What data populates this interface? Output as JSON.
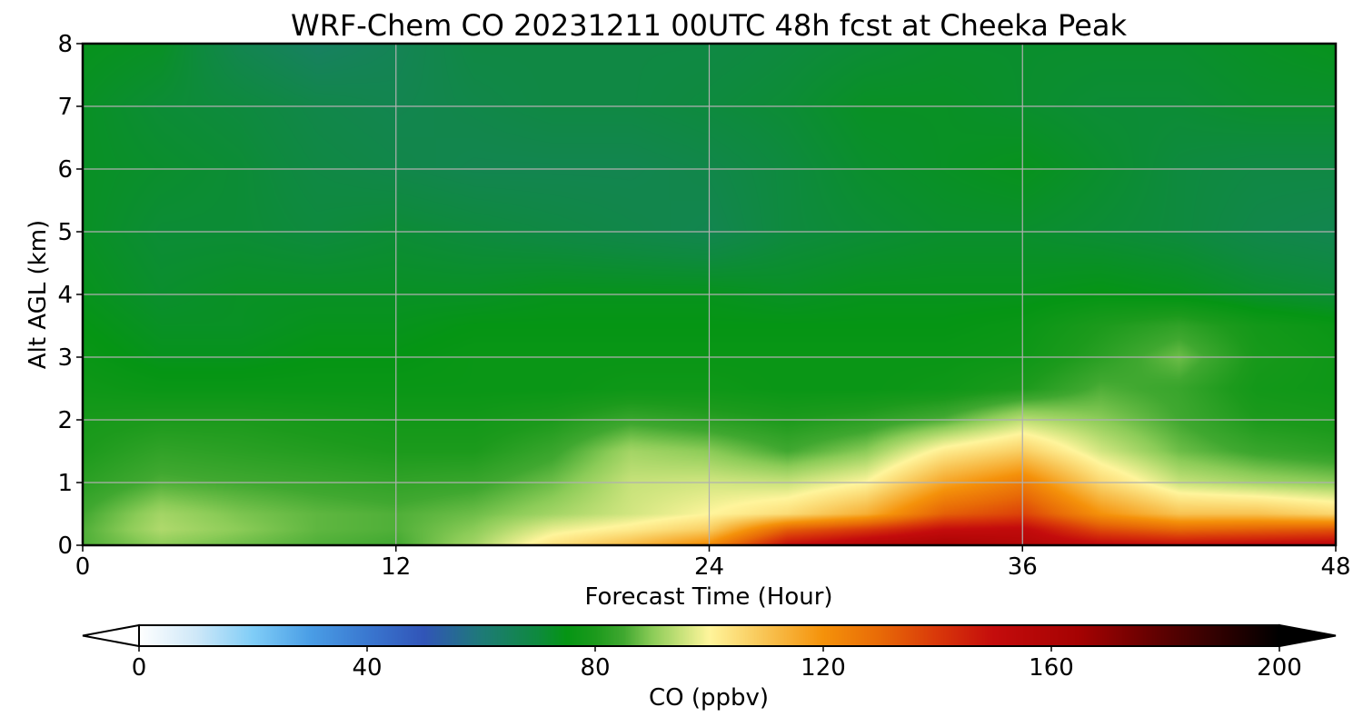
{
  "chart_data": {
    "type": "heatmap",
    "title": "WRF-Chem CO  20231211 00UTC 48h fcst at Cheeka Peak",
    "xlabel": "Forecast Time (Hour)",
    "ylabel": "Alt AGL (km)",
    "xlim": [
      0,
      48
    ],
    "ylim": [
      0,
      8
    ],
    "xticks": [
      0,
      12,
      24,
      36,
      48
    ],
    "yticks": [
      0,
      1,
      2,
      3,
      4,
      5,
      6,
      7,
      8
    ],
    "grid": true,
    "colorbar": {
      "label": "CO  (ppbv)",
      "orientation": "horizontal",
      "position": "bottom",
      "ticks": [
        0,
        40,
        80,
        120,
        160,
        200
      ],
      "range": [
        0,
        200
      ],
      "extend": "both",
      "colors": {
        "0": "#ffffff",
        "10": "#cfe8f8",
        "20": "#80cdf7",
        "30": "#4a9ee6",
        "40": "#3a78d0",
        "50": "#3155b8",
        "60": "#1e7a78",
        "70": "#0e8a3e",
        "75": "#059514",
        "80": "#1c9a1c",
        "85": "#40a830",
        "90": "#8ccc58",
        "95": "#c7e27a",
        "100": "#fff59c",
        "110": "#f8c352",
        "120": "#f5920a",
        "130": "#e86a07",
        "140": "#d9380a",
        "150": "#c40c0c",
        "165": "#a50202",
        "180": "#5a0101",
        "200": "#000000"
      }
    },
    "x": [
      0,
      3,
      6,
      9,
      12,
      15,
      18,
      21,
      24,
      27,
      30,
      33,
      36,
      39,
      42,
      45,
      48
    ],
    "y": [
      0,
      0.25,
      0.5,
      1,
      1.5,
      2,
      2.5,
      3,
      3.5,
      4,
      5,
      6,
      7,
      8
    ],
    "z": [
      [
        86,
        90,
        88,
        86,
        85,
        92,
        104,
        112,
        122,
        150,
        158,
        163,
        158,
        152,
        150,
        152,
        154
      ],
      [
        86,
        93,
        90,
        87,
        86,
        90,
        98,
        102,
        108,
        132,
        140,
        150,
        152,
        136,
        130,
        132,
        134
      ],
      [
        85,
        92,
        89,
        87,
        86,
        88,
        92,
        96,
        100,
        105,
        114,
        132,
        138,
        120,
        110,
        110,
        106
      ],
      [
        82,
        86,
        85,
        84,
        83,
        84,
        88,
        95,
        96,
        95,
        100,
        116,
        125,
        106,
        95,
        92,
        90
      ],
      [
        80,
        83,
        82,
        81,
        80,
        80,
        84,
        92,
        90,
        85,
        90,
        102,
        108,
        96,
        88,
        84,
        82
      ],
      [
        79,
        80,
        80,
        79,
        78,
        78,
        80,
        84,
        82,
        80,
        82,
        86,
        94,
        90,
        85,
        80,
        79
      ],
      [
        77,
        76,
        76,
        76,
        76,
        76,
        76,
        77,
        77,
        76,
        76,
        77,
        80,
        86,
        84,
        78,
        77
      ],
      [
        76,
        74,
        74,
        75,
        75,
        76,
        76,
        76,
        76,
        76,
        76,
        76,
        77,
        82,
        88,
        79,
        77
      ],
      [
        75,
        73,
        73,
        74,
        74,
        75,
        75,
        75,
        75,
        75,
        75,
        75,
        76,
        80,
        83,
        78,
        76
      ],
      [
        74,
        72,
        73,
        73,
        73,
        73,
        74,
        74,
        74,
        73,
        74,
        74,
        74,
        75,
        74,
        72,
        71
      ],
      [
        73,
        71,
        71,
        70,
        71,
        70,
        69,
        68,
        67,
        70,
        71,
        72,
        72,
        71,
        70,
        68,
        67
      ],
      [
        73,
        72,
        71,
        69,
        68,
        67,
        67,
        67,
        68,
        70,
        72,
        73,
        74,
        72,
        70,
        69,
        69
      ],
      [
        73,
        71,
        70,
        68,
        67,
        68,
        69,
        69,
        70,
        71,
        73,
        73,
        72,
        71,
        71,
        72,
        72
      ],
      [
        74,
        73,
        67,
        64,
        66,
        69,
        69,
        69,
        69,
        70,
        71,
        72,
        72,
        72,
        72,
        73,
        74
      ]
    ]
  }
}
